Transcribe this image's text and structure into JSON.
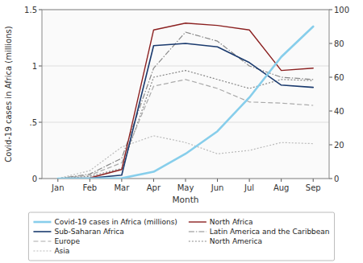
{
  "chart_data": {
    "type": "line",
    "xlabel": "Month",
    "ylabel": "Covid-19 cases in Africa (millions)",
    "categories": [
      "Jan",
      "Feb",
      "Mar",
      "Apr",
      "May",
      "Jun",
      "Jul",
      "Aug",
      "Sep"
    ],
    "ylim": [
      0,
      1.5
    ],
    "yticks": [
      0,
      {
        "value": 0.5,
        "label": ".5"
      },
      1,
      1.5
    ],
    "y2lim": [
      0,
      100
    ],
    "y2ticks": [
      0,
      20,
      40,
      60,
      80,
      100
    ],
    "grid": true,
    "legend": "bottom",
    "series": [
      {
        "name": "Covid-19 cases in Africa (millions)",
        "color": "#87CEEB",
        "line_style": "solid",
        "values": [
          0,
          0.001,
          0.003,
          0.06,
          0.22,
          0.42,
          0.72,
          1.08,
          1.35
        ]
      },
      {
        "name": "North Africa",
        "color": "#8B2020",
        "line_style": "solid",
        "values": [
          0,
          0.005,
          0.08,
          1.32,
          1.38,
          1.36,
          1.32,
          0.96,
          0.98
        ]
      },
      {
        "name": "Sub-Saharan Africa",
        "color": "#1a3a6e",
        "line_style": "solid",
        "values": [
          0,
          0.004,
          0.03,
          1.18,
          1.2,
          1.17,
          1.03,
          0.83,
          0.81
        ]
      },
      {
        "name": "Latin America and the Caribbean",
        "color": "#888888",
        "line_style": "dashdot",
        "values": [
          0,
          0.04,
          0.18,
          0.98,
          1.3,
          1.22,
          1.0,
          0.9,
          0.88
        ]
      },
      {
        "name": "Europe",
        "color": "#aaaaaa",
        "line_style": "dashed",
        "values": [
          0,
          0.03,
          0.14,
          0.82,
          0.88,
          0.8,
          0.68,
          0.67,
          0.65
        ]
      },
      {
        "name": "North America",
        "color": "#888888",
        "line_style": "dotted",
        "values": [
          0,
          0.02,
          0.09,
          0.9,
          0.96,
          0.88,
          0.8,
          0.88,
          0.87
        ]
      },
      {
        "name": "Asia",
        "color": "#bbbbbb",
        "line_style": "dotted",
        "values": [
          0,
          0.07,
          0.28,
          0.38,
          0.32,
          0.22,
          0.25,
          0.32,
          0.31
        ]
      }
    ]
  }
}
